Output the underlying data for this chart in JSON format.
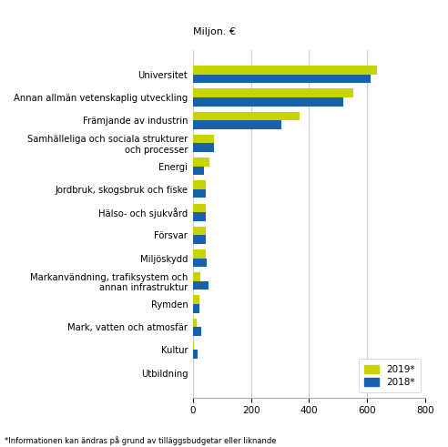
{
  "categories": [
    "Utbildning",
    "Kultur",
    "Mark, vatten och atmosfär",
    "Rymden",
    "Markanvändning, trafiksystem och\nannan infrastruktur",
    "Miljöskydd",
    "Försvar",
    "Hälso- och sjukvård",
    "Jordbruk, skogsbruk och fiske",
    "Energi",
    "Samhälleliga och sociala strukturer\noch processer",
    "Främjande av industrin",
    "Annan allmän vetenskaplig utveckling",
    "Universitet"
  ],
  "values_2019": [
    1,
    4,
    14,
    22,
    27,
    44,
    43,
    44,
    46,
    57,
    72,
    368,
    553,
    633
  ],
  "values_2018": [
    2,
    17,
    29,
    24,
    54,
    49,
    44,
    45,
    46,
    37,
    72,
    304,
    518,
    613
  ],
  "color_2019": "#c8d400",
  "color_2018": "#1961ac",
  "top_label": "Miljon. €",
  "xlim": [
    0,
    800
  ],
  "xticks": [
    0,
    200,
    400,
    600,
    800
  ],
  "legend_2019": "2019*",
  "legend_2018": "2018*",
  "footnote": "*Informationen kan ändras på grund av tilläggsbudgetar eller liknande",
  "bar_height": 0.38,
  "background_color": "#ffffff",
  "grid_color": "#cccccc"
}
